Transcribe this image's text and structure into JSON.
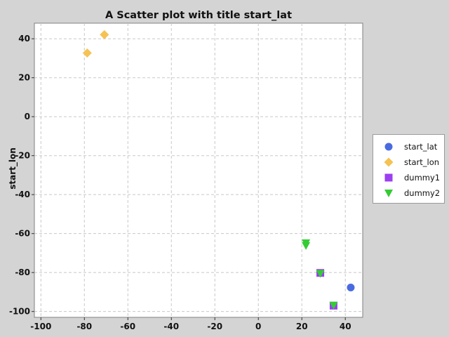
{
  "chart_data": {
    "type": "scatter",
    "title": "A Scatter plot with title start_lat",
    "xlabel": "",
    "ylabel": "start_lon",
    "xlim": [
      -103,
      48
    ],
    "ylim": [
      -103,
      48
    ],
    "x_ticks": [
      -100,
      -80,
      -60,
      -40,
      -20,
      0,
      20,
      40
    ],
    "y_ticks": [
      -100,
      -80,
      -60,
      -40,
      -20,
      0,
      20,
      40
    ],
    "grid": true,
    "legend_position": "right",
    "series": [
      {
        "name": "start_lat",
        "marker": "circle",
        "color": "#4a6be0",
        "points": [
          {
            "x": 42.5,
            "y": -87.7
          }
        ]
      },
      {
        "name": "start_lon",
        "marker": "diamond",
        "color": "#f5c253",
        "points": [
          {
            "x": -70.8,
            "y": 42.1
          },
          {
            "x": -78.7,
            "y": 32.7
          }
        ]
      },
      {
        "name": "dummy1",
        "marker": "square",
        "color": "#9b3ff0",
        "points": [
          {
            "x": 28.5,
            "y": -80.2
          },
          {
            "x": 34.6,
            "y": -97.0
          }
        ]
      },
      {
        "name": "dummy2",
        "marker": "triangle-down",
        "color": "#33cc33",
        "points": [
          {
            "x": 21.9,
            "y": -64.8
          },
          {
            "x": 21.9,
            "y": -66.2
          },
          {
            "x": 28.5,
            "y": -80.5
          },
          {
            "x": 34.6,
            "y": -96.8
          }
        ]
      }
    ]
  }
}
